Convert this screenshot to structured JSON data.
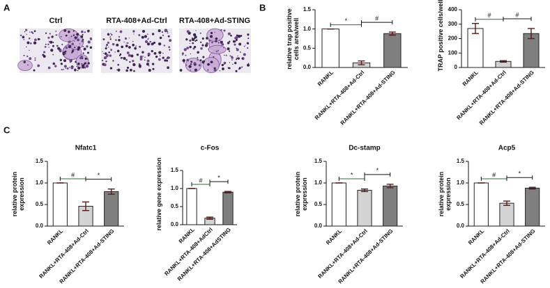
{
  "panels": {
    "a": "A",
    "b": "B",
    "c": "C"
  },
  "images": {
    "labels": [
      "Ctrl",
      "RTA-408+Ad-Ctrl",
      "RTA-408+Ad-STING"
    ]
  },
  "chart_data": [
    {
      "type": "bar",
      "ylabel": "relative trap positive cells area/well",
      "categories": [
        "RANKL",
        "RANKL+RTA-408+Ad-Ctrl",
        "RANKL+RTA-408+Ad-STING"
      ],
      "values": [
        1.0,
        0.12,
        0.88
      ],
      "errors": [
        0,
        0.05,
        0.04
      ],
      "colors": [
        "#ffffff",
        "#d3d3d3",
        "#7f7f7f"
      ],
      "ylim": [
        0,
        1.5
      ],
      "yticks": [
        {
          "value": 0,
          "label": "0.0"
        },
        0.5,
        {
          "value": 1,
          "label": "1.0"
        },
        1.5
      ],
      "significance": [
        "*",
        "#"
      ]
    },
    {
      "type": "bar",
      "ylabel": "TRAP positive cells/well",
      "categories": [
        "RANKL",
        "RANKL+RTA-408+Ad-Ctrl",
        "RANKL+RTA-408+Ad-STING"
      ],
      "values": [
        270,
        42,
        235
      ],
      "errors": [
        35,
        5,
        35
      ],
      "colors": [
        "#ffffff",
        "#d3d3d3",
        "#7f7f7f"
      ],
      "ylim": [
        0,
        400
      ],
      "yticks": [
        0,
        100,
        200,
        300,
        400
      ],
      "significance": [
        "#",
        "#"
      ]
    },
    {
      "type": "bar",
      "title": "Nfatc1",
      "ylabel": "relative protein expression",
      "categories": [
        "RANKL",
        "RANKL+RTA-408+Ad-Ctrl",
        "RANKL+RTA-408+Ad-STING"
      ],
      "values": [
        1.0,
        0.46,
        0.8
      ],
      "errors": [
        0,
        0.1,
        0.06
      ],
      "colors": [
        "#ffffff",
        "#d3d3d3",
        "#7f7f7f"
      ],
      "ylim": [
        0,
        1.5
      ],
      "yticks": [
        {
          "value": 0,
          "label": "0.0"
        },
        0.5,
        {
          "value": 1,
          "label": "1.0"
        },
        1.5
      ],
      "significance": [
        "#",
        "*"
      ]
    },
    {
      "type": "bar",
      "title": "c-Fos",
      "ylabel": "relative gene expression",
      "categories": [
        "RANKL",
        "RANKL+RTA-408+AdCtrl",
        "RANKL+RTA-408+AdSTING"
      ],
      "values": [
        1.0,
        0.18,
        0.9
      ],
      "errors": [
        0,
        0.03,
        0.02
      ],
      "colors": [
        "#ffffff",
        "#d3d3d3",
        "#7f7f7f"
      ],
      "ylim": [
        0,
        1.5
      ],
      "yticks": [
        {
          "value": 0,
          "label": "0.0"
        },
        0.5,
        {
          "value": 1,
          "label": "1.0"
        },
        1.5
      ],
      "significance": [
        "#",
        "*"
      ]
    },
    {
      "type": "bar",
      "title": "Dc-stamp",
      "ylabel": "relative protein expression",
      "categories": [
        "RANKL",
        "RANKL+RTA-408+Ad-Ctrl",
        "RANKL+RTA-408+Ad-STING"
      ],
      "values": [
        1.0,
        0.83,
        0.93
      ],
      "errors": [
        0,
        0.03,
        0.04
      ],
      "colors": [
        "#ffffff",
        "#d3d3d3",
        "#7f7f7f"
      ],
      "ylim": [
        0,
        1.5
      ],
      "yticks": [
        {
          "value": 0,
          "label": "0.0"
        },
        0.5,
        {
          "value": 1,
          "label": "1.0"
        },
        1.5
      ],
      "significance": [
        "*",
        "*"
      ]
    },
    {
      "type": "bar",
      "title": "Acp5",
      "ylabel": "relative protein expression",
      "categories": [
        "RANKL",
        "RANKL+RTA-408+Ad-Ctrl",
        "RANKL+RTA-408+Ad-STING"
      ],
      "values": [
        1.0,
        0.53,
        0.88
      ],
      "errors": [
        0,
        0.05,
        0.02
      ],
      "colors": [
        "#ffffff",
        "#d3d3d3",
        "#7f7f7f"
      ],
      "ylim": [
        0,
        1.5
      ],
      "yticks": [
        {
          "value": 0,
          "label": "0.0"
        },
        0.5,
        {
          "value": 1,
          "label": "1.0"
        },
        1.5
      ],
      "significance": [
        "#",
        "*"
      ]
    }
  ]
}
